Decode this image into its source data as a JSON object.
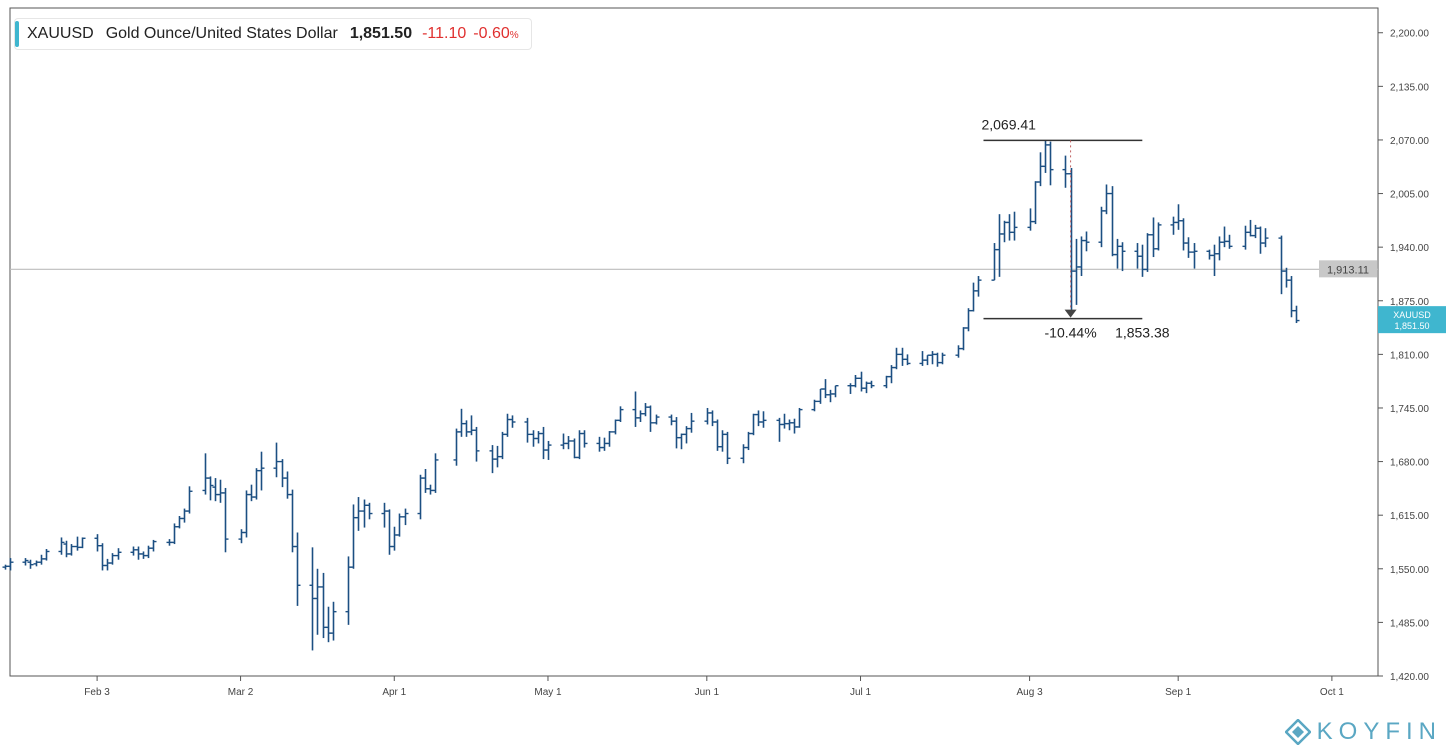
{
  "header": {
    "symbol": "XAUUSD",
    "name": "Gold Ounce/United States Dollar",
    "last": "1,851.50",
    "change": "-11.10",
    "change_pct": "-0.60",
    "pct_sign": "%"
  },
  "brand": {
    "text": "KOYFIN",
    "logo_icon": "koyfin-logo-icon"
  },
  "colors": {
    "series": "#1c4f82",
    "accent": "#3fb6cf",
    "negative": "#e0302f",
    "ref_line": "#bdbdbd",
    "ref_label_bg": "#c8c8c8",
    "axis": "#444444",
    "annotation": "#333333"
  },
  "chart_data": {
    "type": "ohlc",
    "series_name": "XAUUSD",
    "x_range": [
      "2020-01-17",
      "2020-10-10"
    ],
    "ylim": [
      1420,
      2230
    ],
    "grid": false,
    "y_ticks": [
      {
        "value": 2200,
        "label": "2,200.00"
      },
      {
        "value": 2135,
        "label": "2,135.00"
      },
      {
        "value": 2070,
        "label": "2,070.00"
      },
      {
        "value": 2005,
        "label": "2,005.00"
      },
      {
        "value": 1940,
        "label": "1,940.00"
      },
      {
        "value": 1875,
        "label": "1,875.00"
      },
      {
        "value": 1810,
        "label": "1,810.00"
      },
      {
        "value": 1745,
        "label": "1,745.00"
      },
      {
        "value": 1680,
        "label": "1,680.00"
      },
      {
        "value": 1615,
        "label": "1,615.00"
      },
      {
        "value": 1550,
        "label": "1,550.00"
      },
      {
        "value": 1485,
        "label": "1,485.00"
      },
      {
        "value": 1420,
        "label": "1,420.00"
      }
    ],
    "x_ticks": [
      {
        "date": "2020-02-03",
        "label": "Feb 3"
      },
      {
        "date": "2020-03-02",
        "label": "Mar 2"
      },
      {
        "date": "2020-04-01",
        "label": "Apr 1"
      },
      {
        "date": "2020-05-01",
        "label": "May 1"
      },
      {
        "date": "2020-06-01",
        "label": "Jun 1"
      },
      {
        "date": "2020-07-01",
        "label": "Jul 1"
      },
      {
        "date": "2020-08-03",
        "label": "Aug 3"
      },
      {
        "date": "2020-09-01",
        "label": "Sep 1"
      },
      {
        "date": "2020-10-01",
        "label": "Oct 1"
      }
    ],
    "reference_line": {
      "value": 1913.11,
      "label": "1,913.11"
    },
    "last_price_tag": {
      "symbol": "XAUUSD",
      "value": 1851.5,
      "label": "1,851.50"
    },
    "measure": {
      "start_date": "2020-07-25",
      "end_date": "2020-08-25",
      "high": 2069.41,
      "high_label": "2,069.41",
      "low": 1853.38,
      "low_label": "1,853.38",
      "pct_label": "-10.44%",
      "marker_date": "2020-08-11"
    },
    "bars": [
      [
        "2020-01-16",
        1552,
        1555,
        1549,
        1553
      ],
      [
        "2020-01-17",
        1553,
        1563,
        1548,
        1558
      ],
      [
        "2020-01-20",
        1558,
        1563,
        1554,
        1560
      ],
      [
        "2020-01-21",
        1558,
        1561,
        1550,
        1555
      ],
      [
        "2020-01-22",
        1556,
        1560,
        1553,
        1558
      ],
      [
        "2020-01-23",
        1558,
        1567,
        1555,
        1562
      ],
      [
        "2020-01-24",
        1562,
        1574,
        1560,
        1571
      ],
      [
        "2020-01-27",
        1571,
        1588,
        1567,
        1582
      ],
      [
        "2020-01-28",
        1580,
        1584,
        1564,
        1568
      ],
      [
        "2020-01-29",
        1568,
        1580,
        1566,
        1577
      ],
      [
        "2020-01-30",
        1577,
        1589,
        1572,
        1576
      ],
      [
        "2020-01-31",
        1576,
        1588,
        1575,
        1587
      ],
      [
        "2020-02-03",
        1587,
        1592,
        1571,
        1578
      ],
      [
        "2020-02-04",
        1578,
        1581,
        1548,
        1554
      ],
      [
        "2020-02-05",
        1554,
        1562,
        1548,
        1557
      ],
      [
        "2020-02-06",
        1557,
        1569,
        1555,
        1566
      ],
      [
        "2020-02-07",
        1566,
        1575,
        1561,
        1570
      ],
      [
        "2020-02-10",
        1570,
        1577,
        1566,
        1573
      ],
      [
        "2020-02-11",
        1573,
        1577,
        1561,
        1568
      ],
      [
        "2020-02-12",
        1568,
        1571,
        1562,
        1566
      ],
      [
        "2020-02-13",
        1566,
        1578,
        1563,
        1575
      ],
      [
        "2020-02-14",
        1575,
        1585,
        1571,
        1583
      ],
      [
        "2020-02-17",
        1582,
        1586,
        1578,
        1582
      ],
      [
        "2020-02-18",
        1582,
        1605,
        1580,
        1601
      ],
      [
        "2020-02-19",
        1601,
        1614,
        1599,
        1611
      ],
      [
        "2020-02-20",
        1611,
        1623,
        1606,
        1620
      ],
      [
        "2020-02-21",
        1620,
        1650,
        1617,
        1644
      ],
      [
        "2020-02-24",
        1645,
        1690,
        1640,
        1660
      ],
      [
        "2020-02-25",
        1660,
        1662,
        1633,
        1651
      ],
      [
        "2020-02-26",
        1649,
        1660,
        1632,
        1640
      ],
      [
        "2020-02-27",
        1640,
        1658,
        1630,
        1642
      ],
      [
        "2020-02-28",
        1642,
        1648,
        1570,
        1586
      ],
      [
        "2020-03-02",
        1586,
        1598,
        1581,
        1594
      ],
      [
        "2020-03-03",
        1594,
        1645,
        1588,
        1640
      ],
      [
        "2020-03-04",
        1640,
        1652,
        1632,
        1637
      ],
      [
        "2020-03-05",
        1637,
        1672,
        1634,
        1669
      ],
      [
        "2020-03-06",
        1669,
        1692,
        1645,
        1672
      ],
      [
        "2020-03-09",
        1672,
        1703,
        1661,
        1680
      ],
      [
        "2020-03-10",
        1680,
        1683,
        1649,
        1660
      ],
      [
        "2020-03-11",
        1660,
        1668,
        1635,
        1640
      ],
      [
        "2020-03-12",
        1640,
        1646,
        1570,
        1577
      ],
      [
        "2020-03-13",
        1577,
        1594,
        1505,
        1530
      ],
      [
        "2020-03-16",
        1530,
        1576,
        1451,
        1514
      ],
      [
        "2020-03-17",
        1514,
        1550,
        1470,
        1528
      ],
      [
        "2020-03-18",
        1528,
        1545,
        1466,
        1479
      ],
      [
        "2020-03-19",
        1479,
        1504,
        1461,
        1472
      ],
      [
        "2020-03-20",
        1472,
        1510,
        1463,
        1498
      ],
      [
        "2020-03-23",
        1498,
        1565,
        1482,
        1552
      ],
      [
        "2020-03-24",
        1552,
        1628,
        1550,
        1612
      ],
      [
        "2020-03-25",
        1612,
        1637,
        1596,
        1620
      ],
      [
        "2020-03-26",
        1620,
        1634,
        1600,
        1627
      ],
      [
        "2020-03-27",
        1627,
        1630,
        1610,
        1617
      ],
      [
        "2020-03-30",
        1617,
        1630,
        1600,
        1620
      ],
      [
        "2020-03-31",
        1620,
        1622,
        1567,
        1577
      ],
      [
        "2020-04-01",
        1577,
        1601,
        1572,
        1591
      ],
      [
        "2020-04-02",
        1591,
        1617,
        1589,
        1613
      ],
      [
        "2020-04-03",
        1613,
        1623,
        1603,
        1617
      ],
      [
        "2020-04-06",
        1617,
        1664,
        1610,
        1660
      ],
      [
        "2020-04-07",
        1660,
        1671,
        1642,
        1647
      ],
      [
        "2020-04-08",
        1647,
        1652,
        1640,
        1645
      ],
      [
        "2020-04-09",
        1645,
        1690,
        1642,
        1682
      ],
      [
        "2020-04-13",
        1682,
        1720,
        1675,
        1716
      ],
      [
        "2020-04-14",
        1716,
        1744,
        1710,
        1726
      ],
      [
        "2020-04-15",
        1726,
        1730,
        1710,
        1716
      ],
      [
        "2020-04-16",
        1716,
        1736,
        1712,
        1718
      ],
      [
        "2020-04-17",
        1718,
        1722,
        1680,
        1693
      ],
      [
        "2020-04-20",
        1693,
        1700,
        1666,
        1683
      ],
      [
        "2020-04-21",
        1683,
        1699,
        1673,
        1686
      ],
      [
        "2020-04-22",
        1686,
        1716,
        1683,
        1713
      ],
      [
        "2020-04-23",
        1713,
        1738,
        1710,
        1731
      ],
      [
        "2020-04-24",
        1731,
        1736,
        1721,
        1728
      ],
      [
        "2020-04-27",
        1728,
        1733,
        1703,
        1713
      ],
      [
        "2020-04-28",
        1713,
        1718,
        1698,
        1708
      ],
      [
        "2020-04-29",
        1708,
        1717,
        1702,
        1714
      ],
      [
        "2020-04-30",
        1714,
        1722,
        1683,
        1694
      ],
      [
        "2020-05-01",
        1694,
        1705,
        1682,
        1700
      ],
      [
        "2020-05-04",
        1700,
        1714,
        1695,
        1702
      ],
      [
        "2020-05-05",
        1702,
        1711,
        1695,
        1705
      ],
      [
        "2020-05-06",
        1705,
        1708,
        1684,
        1685
      ],
      [
        "2020-05-07",
        1685,
        1718,
        1683,
        1714
      ],
      [
        "2020-05-08",
        1714,
        1718,
        1697,
        1702
      ],
      [
        "2020-05-11",
        1702,
        1710,
        1692,
        1697
      ],
      [
        "2020-05-12",
        1697,
        1709,
        1693,
        1702
      ],
      [
        "2020-05-13",
        1702,
        1717,
        1698,
        1716
      ],
      [
        "2020-05-14",
        1716,
        1731,
        1713,
        1730
      ],
      [
        "2020-05-15",
        1730,
        1747,
        1728,
        1743
      ],
      [
        "2020-05-18",
        1743,
        1765,
        1722,
        1733
      ],
      [
        "2020-05-19",
        1733,
        1742,
        1728,
        1738
      ],
      [
        "2020-05-20",
        1738,
        1751,
        1735,
        1746
      ],
      [
        "2020-05-21",
        1746,
        1748,
        1716,
        1727
      ],
      [
        "2020-05-22",
        1727,
        1737,
        1725,
        1734
      ],
      [
        "2020-05-25",
        1734,
        1737,
        1724,
        1729
      ],
      [
        "2020-05-26",
        1729,
        1734,
        1696,
        1709
      ],
      [
        "2020-05-27",
        1709,
        1714,
        1695,
        1713
      ],
      [
        "2020-05-28",
        1713,
        1723,
        1702,
        1720
      ],
      [
        "2020-05-29",
        1720,
        1739,
        1715,
        1729
      ],
      [
        "2020-06-01",
        1729,
        1745,
        1725,
        1739
      ],
      [
        "2020-06-02",
        1739,
        1742,
        1723,
        1728
      ],
      [
        "2020-06-03",
        1728,
        1731,
        1693,
        1698
      ],
      [
        "2020-06-04",
        1698,
        1718,
        1692,
        1713
      ],
      [
        "2020-06-05",
        1713,
        1716,
        1677,
        1684
      ],
      [
        "2020-06-08",
        1684,
        1701,
        1678,
        1697
      ],
      [
        "2020-06-09",
        1697,
        1716,
        1694,
        1714
      ],
      [
        "2020-06-10",
        1714,
        1738,
        1712,
        1737
      ],
      [
        "2020-06-11",
        1737,
        1742,
        1723,
        1728
      ],
      [
        "2020-06-12",
        1728,
        1741,
        1721,
        1730
      ],
      [
        "2020-06-15",
        1730,
        1733,
        1704,
        1725
      ],
      [
        "2020-06-16",
        1725,
        1738,
        1720,
        1726
      ],
      [
        "2020-06-17",
        1726,
        1731,
        1718,
        1727
      ],
      [
        "2020-06-18",
        1727,
        1732,
        1714,
        1722
      ],
      [
        "2020-06-19",
        1722,
        1745,
        1721,
        1743
      ],
      [
        "2020-06-22",
        1743,
        1755,
        1741,
        1753
      ],
      [
        "2020-06-23",
        1753,
        1768,
        1750,
        1768
      ],
      [
        "2020-06-24",
        1768,
        1780,
        1757,
        1761
      ],
      [
        "2020-06-25",
        1761,
        1767,
        1752,
        1762
      ],
      [
        "2020-06-26",
        1762,
        1772,
        1758,
        1772
      ],
      [
        "2020-06-29",
        1772,
        1775,
        1762,
        1772
      ],
      [
        "2020-06-30",
        1772,
        1785,
        1770,
        1781
      ],
      [
        "2020-07-01",
        1781,
        1789,
        1765,
        1769
      ],
      [
        "2020-07-02",
        1769,
        1777,
        1763,
        1775
      ],
      [
        "2020-07-03",
        1775,
        1778,
        1769,
        1772
      ],
      [
        "2020-07-06",
        1772,
        1784,
        1769,
        1783
      ],
      [
        "2020-07-07",
        1783,
        1797,
        1775,
        1794
      ],
      [
        "2020-07-08",
        1794,
        1818,
        1792,
        1810
      ],
      [
        "2020-07-09",
        1810,
        1818,
        1796,
        1804
      ],
      [
        "2020-07-10",
        1804,
        1810,
        1797,
        1799
      ],
      [
        "2020-07-13",
        1799,
        1814,
        1796,
        1803
      ],
      [
        "2020-07-14",
        1803,
        1809,
        1797,
        1809
      ],
      [
        "2020-07-15",
        1809,
        1814,
        1798,
        1810
      ],
      [
        "2020-07-16",
        1810,
        1812,
        1795,
        1800
      ],
      [
        "2020-07-17",
        1800,
        1812,
        1798,
        1809
      ],
      [
        "2020-07-20",
        1809,
        1821,
        1806,
        1817
      ],
      [
        "2020-07-21",
        1817,
        1843,
        1815,
        1842
      ],
      [
        "2020-07-22",
        1842,
        1866,
        1838,
        1863
      ],
      [
        "2020-07-23",
        1863,
        1897,
        1862,
        1887
      ],
      [
        "2020-07-24",
        1887,
        1905,
        1880,
        1900
      ],
      [
        "2020-07-27",
        1900,
        1945,
        1900,
        1937
      ],
      [
        "2020-07-28",
        1937,
        1980,
        1904,
        1956
      ],
      [
        "2020-07-29",
        1956,
        1972,
        1946,
        1970
      ],
      [
        "2020-07-30",
        1970,
        1980,
        1948,
        1958
      ],
      [
        "2020-07-31",
        1958,
        1983,
        1948,
        1964
      ],
      [
        "2020-08-03",
        1964,
        1987,
        1960,
        1971
      ],
      [
        "2020-08-04",
        1971,
        2020,
        1968,
        2019
      ],
      [
        "2020-08-05",
        2019,
        2055,
        2014,
        2038
      ],
      [
        "2020-08-06",
        2038,
        2069,
        2030,
        2064
      ],
      [
        "2020-08-07",
        2064,
        2068,
        2015,
        2034
      ],
      [
        "2020-08-10",
        2034,
        2051,
        2012,
        2029
      ],
      [
        "2020-08-11",
        2029,
        2036,
        1864,
        1911
      ],
      [
        "2020-08-12",
        1911,
        1950,
        1870,
        1916
      ],
      [
        "2020-08-13",
        1916,
        1953,
        1905,
        1948
      ],
      [
        "2020-08-14",
        1948,
        1959,
        1935,
        1946
      ],
      [
        "2020-08-17",
        1946,
        1989,
        1940,
        1984
      ],
      [
        "2020-08-18",
        1984,
        2016,
        1980,
        2005
      ],
      [
        "2020-08-19",
        2005,
        2014,
        1929,
        1931
      ],
      [
        "2020-08-20",
        1931,
        1950,
        1914,
        1941
      ],
      [
        "2020-08-21",
        1941,
        1946,
        1911,
        1935
      ],
      [
        "2020-08-24",
        1935,
        1945,
        1914,
        1929
      ],
      [
        "2020-08-25",
        1929,
        1943,
        1904,
        1913
      ],
      [
        "2020-08-26",
        1913,
        1957,
        1910,
        1955
      ],
      [
        "2020-08-27",
        1955,
        1976,
        1928,
        1938
      ],
      [
        "2020-08-28",
        1938,
        1970,
        1936,
        1967
      ],
      [
        "2020-08-31",
        1967,
        1977,
        1955,
        1970
      ],
      [
        "2020-09-01",
        1970,
        1992,
        1961,
        1972
      ],
      [
        "2020-09-02",
        1972,
        1975,
        1936,
        1945
      ],
      [
        "2020-09-03",
        1945,
        1952,
        1927,
        1934
      ],
      [
        "2020-09-04",
        1934,
        1945,
        1914,
        1935
      ],
      [
        "2020-09-07",
        1935,
        1937,
        1925,
        1930
      ],
      [
        "2020-09-08",
        1930,
        1943,
        1905,
        1932
      ],
      [
        "2020-09-09",
        1932,
        1953,
        1924,
        1946
      ],
      [
        "2020-09-10",
        1946,
        1965,
        1940,
        1947
      ],
      [
        "2020-09-11",
        1947,
        1955,
        1938,
        1941
      ],
      [
        "2020-09-14",
        1941,
        1966,
        1937,
        1958
      ],
      [
        "2020-09-15",
        1958,
        1973,
        1953,
        1954
      ],
      [
        "2020-09-16",
        1954,
        1967,
        1951,
        1963
      ],
      [
        "2020-09-17",
        1963,
        1965,
        1932,
        1945
      ],
      [
        "2020-09-18",
        1945,
        1963,
        1940,
        1951
      ],
      [
        "2020-09-21",
        1951,
        1954,
        1883,
        1911
      ],
      [
        "2020-09-22",
        1911,
        1915,
        1891,
        1900
      ],
      [
        "2020-09-23",
        1900,
        1905,
        1855,
        1863
      ],
      [
        "2020-09-24",
        1863,
        1869,
        1848,
        1851
      ]
    ]
  }
}
